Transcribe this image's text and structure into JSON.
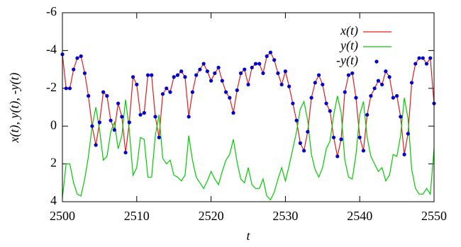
{
  "chart_data": {
    "type": "line",
    "xlabel": "t",
    "ylabel": "x(t), y(t), -y(t)",
    "x": [
      2500,
      2500.5,
      2501,
      2501.5,
      2502,
      2502.5,
      2503,
      2503.5,
      2504,
      2504.5,
      2505,
      2505.5,
      2506,
      2506.5,
      2507,
      2507.5,
      2508,
      2508.5,
      2509,
      2509.5,
      2510,
      2510.5,
      2511,
      2511.5,
      2512,
      2512.5,
      2513,
      2513.5,
      2514,
      2514.5,
      2515,
      2515.5,
      2516,
      2516.5,
      2517,
      2517.5,
      2518,
      2518.5,
      2519,
      2519.5,
      2520,
      2520.5,
      2521,
      2521.5,
      2522,
      2522.5,
      2523,
      2523.5,
      2524,
      2524.5,
      2525,
      2525.5,
      2526,
      2526.5,
      2527,
      2527.5,
      2528,
      2528.5,
      2529,
      2529.5,
      2530,
      2530.5,
      2531,
      2531.5,
      2532,
      2532.5,
      2533,
      2533.5,
      2534,
      2534.5,
      2535,
      2535.5,
      2536,
      2536.5,
      2537,
      2537.5,
      2538,
      2538.5,
      2539,
      2539.5,
      2540,
      2540.5,
      2541,
      2541.5,
      2542,
      2542.5,
      2543,
      2543.5,
      2544,
      2544.5,
      2545,
      2545.5,
      2546,
      2546.5,
      2547,
      2547.5,
      2548,
      2548.5,
      2549,
      2549.5,
      2550
    ],
    "series": [
      {
        "name": "x(t)",
        "color": "#e41a1c",
        "style": "line",
        "values": [
          -3.8,
          -2.0,
          -2.0,
          -3.0,
          -3.6,
          -3.7,
          -2.8,
          -1.6,
          0.0,
          1.0,
          -0.2,
          -1.8,
          -1.6,
          -0.3,
          0.2,
          -1.2,
          -0.5,
          1.4,
          -0.2,
          -2.6,
          -2.2,
          -0.6,
          -0.7,
          -2.7,
          -2.7,
          -0.5,
          0.6,
          -1.7,
          -2.0,
          -1.8,
          -2.6,
          -2.7,
          -2.9,
          -2.6,
          -0.5,
          -1.8,
          -2.7,
          -3.0,
          -3.3,
          -2.9,
          -2.4,
          -2.8,
          -3.1,
          -2.4,
          -1.8,
          -1.5,
          -0.7,
          -1.9,
          -2.8,
          -3.0,
          -2.2,
          -3.1,
          -3.3,
          -3.3,
          -2.8,
          -3.7,
          -3.9,
          -3.5,
          -2.8,
          -2.2,
          -2.9,
          -2.1,
          -1.2,
          -0.3,
          0.9,
          1.3,
          0.3,
          -1.5,
          -2.3,
          -2.7,
          -2.2,
          -1.2,
          -0.8,
          0.6,
          1.6,
          0.7,
          -1.8,
          -2.7,
          -2.8,
          -1.5,
          0.6,
          1.3,
          -0.6,
          -1.6,
          -2.0,
          -2.4,
          -2.2,
          -2.9,
          -2.6,
          -1.5,
          -1.6,
          -0.5,
          1.5,
          0.4,
          -2.3,
          -3.3,
          -3.6,
          -3.6,
          -3.3,
          -3.6,
          -1.2
        ]
      },
      {
        "name": "y(t)",
        "color": "#00cc00",
        "style": "line",
        "values": [
          3.8,
          2.0,
          2.0,
          3.0,
          3.6,
          3.7,
          2.8,
          1.6,
          0.0,
          -1.0,
          0.2,
          1.8,
          1.6,
          0.3,
          -0.2,
          1.2,
          0.5,
          -1.4,
          0.2,
          2.6,
          2.2,
          0.6,
          0.7,
          2.7,
          2.7,
          0.5,
          -0.6,
          1.7,
          2.0,
          1.8,
          2.6,
          2.7,
          2.9,
          2.6,
          0.5,
          1.8,
          2.7,
          3.0,
          3.3,
          2.9,
          2.4,
          2.8,
          3.1,
          2.4,
          1.8,
          1.5,
          0.7,
          1.9,
          2.8,
          3.0,
          2.2,
          3.1,
          3.3,
          3.3,
          2.8,
          3.7,
          3.9,
          3.5,
          2.8,
          2.2,
          2.9,
          2.1,
          1.2,
          0.3,
          -0.9,
          -1.3,
          -0.3,
          1.5,
          2.3,
          2.7,
          2.2,
          1.2,
          0.8,
          -0.6,
          -1.6,
          -0.7,
          1.8,
          2.7,
          2.8,
          1.5,
          -0.6,
          -1.3,
          0.6,
          1.6,
          2.0,
          2.4,
          2.2,
          2.9,
          2.6,
          1.5,
          1.6,
          0.5,
          -1.5,
          -0.4,
          2.3,
          3.3,
          3.6,
          3.6,
          3.3,
          3.6,
          1.2
        ]
      },
      {
        "name": "-y(t)",
        "color": "#0000cc",
        "style": "points",
        "values": [
          -3.8,
          -2.0,
          -2.0,
          -3.0,
          -3.6,
          -3.7,
          -2.8,
          -1.6,
          0.0,
          1.0,
          -0.2,
          -1.8,
          -1.6,
          -0.3,
          0.2,
          -1.2,
          -0.5,
          1.4,
          -0.2,
          -2.6,
          -2.2,
          -0.6,
          -0.7,
          -2.7,
          -2.7,
          -0.5,
          0.6,
          -1.7,
          -2.0,
          -1.8,
          -2.6,
          -2.7,
          -2.9,
          -2.6,
          -0.5,
          -1.8,
          -2.7,
          -3.0,
          -3.3,
          -2.9,
          -2.4,
          -2.8,
          -3.1,
          -2.4,
          -1.8,
          -1.5,
          -0.7,
          -1.9,
          -2.8,
          -3.0,
          -2.2,
          -3.1,
          -3.3,
          -3.3,
          -2.8,
          -3.7,
          -3.9,
          -3.5,
          -2.8,
          -2.2,
          -2.9,
          -2.1,
          -1.2,
          -0.3,
          0.9,
          1.3,
          0.3,
          -1.5,
          -2.3,
          -2.7,
          -2.2,
          -1.2,
          -0.8,
          0.6,
          1.6,
          0.7,
          -1.8,
          -2.7,
          -2.8,
          -1.5,
          0.6,
          1.3,
          -0.6,
          -1.6,
          -2.0,
          -2.4,
          -2.2,
          -2.9,
          -2.6,
          -1.5,
          -1.6,
          -0.5,
          1.5,
          0.4,
          -2.3,
          -3.3,
          -3.6,
          -3.6,
          -3.3,
          -3.6,
          -1.2
        ]
      }
    ],
    "xlim": [
      2500,
      2550
    ],
    "xticks": [
      2500,
      2510,
      2520,
      2530,
      2540,
      2550
    ],
    "ylim": [
      4,
      -6
    ],
    "yticks": [
      4,
      2,
      0,
      -2,
      -4,
      -6
    ],
    "legend": "top-right"
  }
}
